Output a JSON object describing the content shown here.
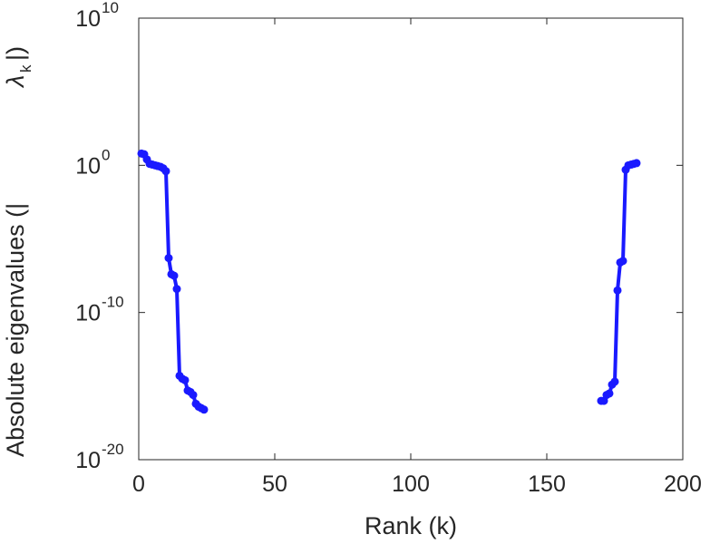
{
  "chart_data": {
    "type": "line",
    "xlabel": "Rank (k)",
    "ylabel": "Absolute eigenvalues (|",
    "ylabel_symbol": "λ",
    "ylabel_subscript": "k",
    "ylabel_close": "|)",
    "xlim": [
      0,
      200
    ],
    "ylim_log10": [
      -20,
      10
    ],
    "y_scale": "log",
    "grid": false,
    "x_ticks": [
      "0",
      "50",
      "100",
      "150",
      "200"
    ],
    "y_ticks": [
      {
        "base": "10",
        "exp": "10",
        "value_log10": 10
      },
      {
        "base": "10",
        "exp": "0",
        "value_log10": 0
      },
      {
        "base": "10",
        "exp": "-10",
        "value_log10": -10
      },
      {
        "base": "10",
        "exp": "-20",
        "value_log10": -20
      }
    ],
    "series": [
      {
        "color": "#1a1aff",
        "segments": [
          {
            "x": [
              1,
              2,
              3,
              4,
              5,
              6,
              7,
              8,
              9,
              10,
              11,
              12,
              13,
              14,
              15,
              16,
              17,
              18,
              19,
              20,
              21,
              22,
              23,
              24
            ],
            "y_log10": [
              0.8,
              0.75,
              0.4,
              0.1,
              0.05,
              0.0,
              -0.05,
              -0.1,
              -0.2,
              -0.4,
              -6.3,
              -7.4,
              -7.5,
              -8.4,
              -14.3,
              -14.5,
              -14.6,
              -15.3,
              -15.4,
              -15.6,
              -16.2,
              -16.4,
              -16.5,
              -16.6
            ],
            "y_display": [
              "10^0.8",
              "10^0.75",
              "10^0.4",
              "10^0.1",
              "10^0.05",
              "10^0",
              "10^-0.05",
              "10^-0.1",
              "10^-0.2",
              "10^-0.4",
              "10^-6.3",
              "10^-7.4",
              "10^-7.5",
              "10^-8.4",
              "10^-14.3",
              "10^-14.5",
              "10^-14.6",
              "10^-15.3",
              "10^-15.4",
              "10^-15.6",
              "10^-16.2",
              "10^-16.4",
              "10^-16.5",
              "10^-16.6"
            ]
          },
          {
            "x": [
              170,
              171,
              172,
              173,
              174,
              175,
              176,
              177,
              178,
              179,
              180,
              181,
              182,
              183
            ],
            "y_log10": [
              -16.0,
              -16.0,
              -15.6,
              -15.5,
              -14.9,
              -14.7,
              -8.5,
              -6.6,
              -6.5,
              -0.3,
              0.0,
              0.05,
              0.1,
              0.15
            ],
            "y_display": [
              "10^-16",
              "10^-16",
              "10^-15.6",
              "10^-15.5",
              "10^-14.9",
              "10^-14.7",
              "10^-8.5",
              "10^-6.6",
              "10^-6.5",
              "10^-0.3",
              "10^0",
              "10^0.05",
              "10^0.1",
              "10^0.15"
            ]
          }
        ]
      }
    ]
  }
}
